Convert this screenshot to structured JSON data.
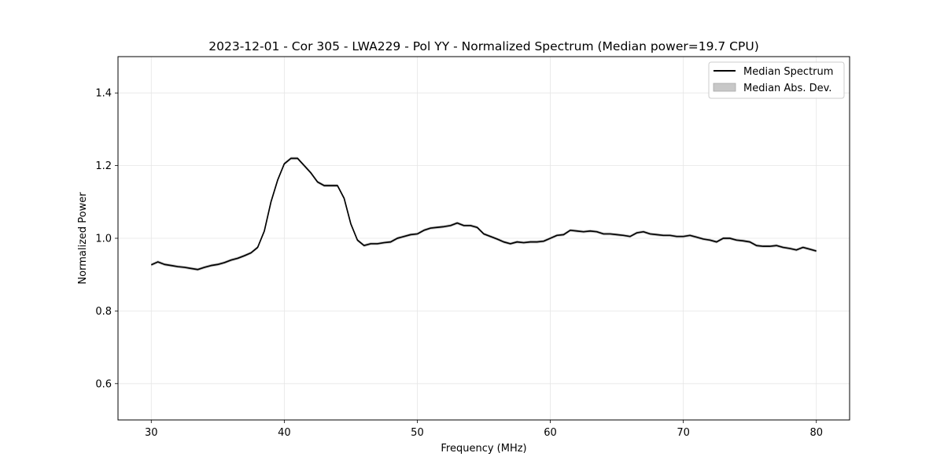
{
  "chart_data": {
    "type": "line",
    "title": "2023-12-01 - Cor 305 - LWA229 - Pol YY - Normalized Spectrum (Median power=19.7 CPU)",
    "xlabel": "Frequency (MHz)",
    "ylabel": "Normalized Power",
    "xlim": [
      27.5,
      82.5
    ],
    "ylim": [
      0.5,
      1.5
    ],
    "xticks": [
      30,
      40,
      50,
      60,
      70,
      80
    ],
    "xtick_labels": [
      "30",
      "40",
      "50",
      "60",
      "70",
      "80"
    ],
    "yticks": [
      0.6,
      0.8,
      1.0,
      1.2,
      1.4
    ],
    "ytick_labels": [
      "0.6",
      "0.8",
      "1.0",
      "1.2",
      "1.4"
    ],
    "grid": true,
    "legend_position": "top-right",
    "legend": [
      {
        "label": "Median Spectrum",
        "kind": "line",
        "color": "#000000"
      },
      {
        "label": "Median Abs. Dev.",
        "kind": "patch",
        "color": "#c8c8c8"
      }
    ],
    "mad_band_halfwidth": 0.004,
    "series": [
      {
        "name": "Median Spectrum",
        "color": "#000000",
        "x": [
          30.0,
          30.5,
          31.0,
          31.5,
          32.0,
          32.5,
          33.0,
          33.5,
          34.0,
          34.5,
          35.0,
          35.5,
          36.0,
          36.5,
          37.0,
          37.5,
          38.0,
          38.5,
          39.0,
          39.5,
          40.0,
          40.5,
          41.0,
          41.5,
          42.0,
          42.5,
          43.0,
          43.5,
          44.0,
          44.5,
          45.0,
          45.5,
          46.0,
          46.5,
          47.0,
          47.5,
          48.0,
          48.5,
          49.0,
          49.5,
          50.0,
          50.5,
          51.0,
          51.5,
          52.0,
          52.5,
          53.0,
          53.5,
          54.0,
          54.5,
          55.0,
          55.5,
          56.0,
          56.5,
          57.0,
          57.5,
          58.0,
          58.5,
          59.0,
          59.5,
          60.0,
          60.5,
          61.0,
          61.5,
          62.0,
          62.5,
          63.0,
          63.5,
          64.0,
          64.5,
          65.0,
          65.5,
          66.0,
          66.5,
          67.0,
          67.5,
          68.0,
          68.5,
          69.0,
          69.5,
          70.0,
          70.5,
          71.0,
          71.5,
          72.0,
          72.5,
          73.0,
          73.5,
          74.0,
          74.5,
          75.0,
          75.5,
          76.0,
          76.5,
          77.0,
          77.5,
          78.0,
          78.5,
          79.0,
          79.5,
          80.0
        ],
        "y": [
          0.927,
          0.935,
          0.928,
          0.925,
          0.922,
          0.92,
          0.917,
          0.914,
          0.92,
          0.925,
          0.928,
          0.933,
          0.94,
          0.945,
          0.952,
          0.96,
          0.975,
          1.02,
          1.1,
          1.16,
          1.205,
          1.22,
          1.22,
          1.2,
          1.18,
          1.155,
          1.145,
          1.145,
          1.145,
          1.11,
          1.04,
          0.995,
          0.98,
          0.985,
          0.985,
          0.988,
          0.99,
          1.0,
          1.005,
          1.01,
          1.012,
          1.022,
          1.028,
          1.03,
          1.032,
          1.035,
          1.042,
          1.035,
          1.035,
          1.03,
          1.012,
          1.005,
          0.998,
          0.99,
          0.985,
          0.99,
          0.988,
          0.99,
          0.99,
          0.992,
          1.0,
          1.008,
          1.01,
          1.022,
          1.02,
          1.018,
          1.02,
          1.018,
          1.012,
          1.012,
          1.01,
          1.008,
          1.005,
          1.015,
          1.018,
          1.012,
          1.01,
          1.008,
          1.008,
          1.005,
          1.005,
          1.008,
          1.003,
          0.998,
          0.995,
          0.99,
          1.0,
          1.0,
          0.995,
          0.993,
          0.99,
          0.98,
          0.978,
          0.978,
          0.98,
          0.975,
          0.972,
          0.968,
          0.975,
          0.97,
          0.965
        ]
      }
    ]
  }
}
